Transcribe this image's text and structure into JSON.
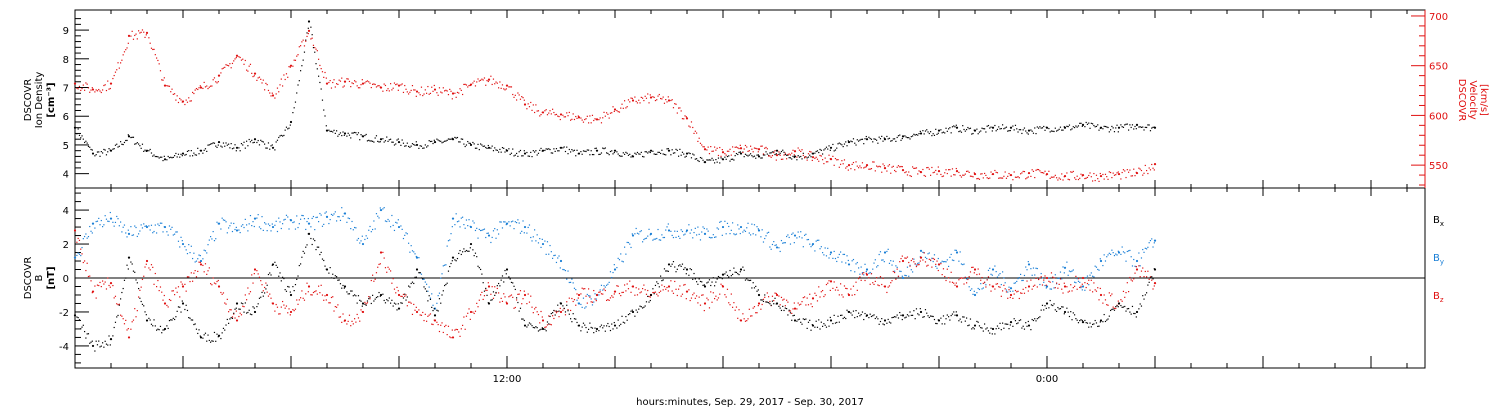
{
  "colors": {
    "black": "#000000",
    "red": "#e01010",
    "blue": "#1a7fd6"
  },
  "footer": {
    "xlabel": "hours:minutes, Sep. 29, 2017 - Sep. 30, 2017"
  },
  "chart_data": [
    {
      "id": "density-velocity",
      "type": "scatter",
      "left_axis": {
        "label_lines": [
          "DSCOVR",
          "Ion Density"
        ],
        "unit": "[cm⁻³]",
        "ylim": [
          3.5,
          9.7
        ],
        "ticks": [
          4,
          5,
          6,
          7,
          8,
          9
        ]
      },
      "right_axis": {
        "label_lines": [
          "DSCOVR",
          "Velocity"
        ],
        "unit": "[km/s]",
        "ylim": [
          527,
          706
        ],
        "ticks": [
          550,
          600,
          650,
          700
        ]
      },
      "x_hours_range": [
        0,
        37.5
      ],
      "series": [
        {
          "axis": "left",
          "color": "black",
          "x": [
            0,
            0.5,
            1,
            1.5,
            2,
            2.5,
            3,
            3.5,
            4,
            4.5,
            5,
            5.5,
            6,
            6.5,
            7,
            7.5,
            8,
            8.5,
            9,
            9.5,
            10,
            10.5,
            11,
            11.5,
            12,
            12.5,
            13,
            13.5,
            14,
            14.5,
            15,
            15.5,
            16,
            16.5,
            17,
            17.5,
            18,
            18.5,
            19,
            19.5,
            20,
            20.5,
            21,
            21.5,
            22,
            22.5,
            23,
            23.5,
            24,
            24.5,
            25,
            25.5,
            26,
            26.5,
            27,
            27.5,
            28,
            28.5,
            29,
            29.5,
            30
          ],
          "y": [
            5.6,
            4.7,
            4.8,
            5.3,
            4.8,
            4.5,
            4.7,
            4.8,
            5.1,
            4.9,
            5.2,
            4.9,
            5.8,
            9.3,
            5.5,
            5.4,
            5.3,
            5.2,
            5.1,
            5.0,
            5.1,
            5.2,
            5.0,
            4.9,
            4.8,
            4.7,
            4.8,
            4.9,
            4.7,
            4.8,
            4.8,
            4.6,
            4.8,
            4.8,
            4.7,
            4.4,
            4.5,
            4.7,
            4.6,
            4.8,
            4.6,
            4.7,
            4.9,
            5.1,
            5.2,
            5.2,
            5.3,
            5.4,
            5.5,
            5.6,
            5.5,
            5.6,
            5.6,
            5.5,
            5.6,
            5.6,
            5.7,
            5.6,
            5.6,
            5.7,
            5.6
          ]
        },
        {
          "axis": "right",
          "color": "red",
          "x": [
            0,
            0.5,
            1,
            1.5,
            2,
            2.5,
            3,
            3.5,
            4,
            4.5,
            5,
            5.5,
            6,
            6.5,
            7,
            7.5,
            8,
            8.5,
            9,
            9.5,
            10,
            10.5,
            11,
            11.5,
            12,
            12.5,
            13,
            13.5,
            14,
            14.5,
            15,
            15.5,
            16,
            16.5,
            17,
            17.5,
            18,
            18.5,
            19,
            19.5,
            20,
            20.5,
            21,
            21.5,
            22,
            22.5,
            23,
            23.5,
            24,
            24.5,
            25,
            25.5,
            26,
            26.5,
            27,
            27.5,
            28,
            28.5,
            29,
            29.5,
            30
          ],
          "y": [
            632,
            626,
            632,
            680,
            683,
            630,
            614,
            628,
            640,
            660,
            642,
            620,
            650,
            685,
            632,
            634,
            632,
            628,
            630,
            624,
            626,
            622,
            631,
            636,
            630,
            611,
            603,
            601,
            598,
            596,
            606,
            615,
            618,
            615,
            597,
            566,
            563,
            567,
            566,
            560,
            564,
            558,
            556,
            550,
            550,
            547,
            545,
            543,
            544,
            544,
            541,
            541,
            540,
            542,
            541,
            539,
            540,
            539,
            541,
            542,
            551
          ]
        }
      ]
    },
    {
      "id": "magnetic-field",
      "type": "scatter",
      "left_axis": {
        "label_lines": [
          "DSCOVR",
          "B"
        ],
        "unit": "[nT]",
        "ylim": [
          -5.3,
          5.3
        ],
        "ticks": [
          -4,
          -2,
          0,
          2,
          4
        ]
      },
      "zero_line": true,
      "x_hours_range": [
        0,
        37.5
      ],
      "xticks": [
        {
          "hour": 12,
          "label": "12:00"
        },
        {
          "hour": 27,
          "label": "0:00"
        }
      ],
      "legend": [
        {
          "label": "B",
          "sub": "x",
          "color": "black"
        },
        {
          "label": "B",
          "sub": "y",
          "color": "blue"
        },
        {
          "label": "B",
          "sub": "z",
          "color": "red"
        }
      ],
      "series": [
        {
          "name": "Bx",
          "color": "black",
          "x": [
            0,
            0.5,
            1,
            1.5,
            2,
            2.5,
            3,
            3.5,
            4,
            4.5,
            5,
            5.5,
            6,
            6.5,
            7,
            7.5,
            8,
            8.5,
            9,
            9.5,
            10,
            10.5,
            11,
            11.5,
            12,
            12.5,
            13,
            13.5,
            14,
            14.5,
            15,
            15.5,
            16,
            16.5,
            17,
            17.5,
            18,
            18.5,
            19,
            19.5,
            20,
            20.5,
            21,
            21.5,
            22,
            22.5,
            23,
            23.5,
            24,
            24.5,
            25,
            25.5,
            26,
            26.5,
            27,
            27.5,
            28,
            28.5,
            29,
            29.5,
            30
          ],
          "y": [
            -2.2,
            -4.0,
            -3.6,
            1.2,
            -2.5,
            -3.0,
            -1.5,
            -3.5,
            -3.4,
            -1.5,
            -2.0,
            0.8,
            -1.0,
            2.6,
            0.5,
            -0.5,
            -1.5,
            -1.0,
            -1.8,
            0.5,
            -2.2,
            1.2,
            2.0,
            -1.5,
            0.5,
            -2.8,
            -3.0,
            -1.5,
            -2.8,
            -3.0,
            -2.8,
            -2.0,
            -1.0,
            0.8,
            0.5,
            -0.5,
            0.2,
            0.5,
            -1.0,
            -1.5,
            -2.5,
            -2.8,
            -2.5,
            -2.0,
            -2.2,
            -2.5,
            -2.2,
            -2.0,
            -2.5,
            -2.2,
            -2.8,
            -3.0,
            -2.6,
            -2.8,
            -1.5,
            -2.0,
            -2.6,
            -2.5,
            -1.5,
            -2.0,
            0.5
          ]
        },
        {
          "name": "By",
          "color": "blue",
          "x": [
            0,
            0.5,
            1,
            1.5,
            2,
            2.5,
            3,
            3.5,
            4,
            4.5,
            5,
            5.5,
            6,
            6.5,
            7,
            7.5,
            8,
            8.5,
            9,
            9.5,
            10,
            10.5,
            11,
            11.5,
            12,
            12.5,
            13,
            13.5,
            14,
            14.5,
            15,
            15.5,
            16,
            16.5,
            17,
            17.5,
            18,
            18.5,
            19,
            19.5,
            20,
            20.5,
            21,
            21.5,
            22,
            22.5,
            23,
            23.5,
            24,
            24.5,
            25,
            25.5,
            26,
            26.5,
            27,
            27.5,
            28,
            28.5,
            29,
            29.5,
            30
          ],
          "y": [
            1.2,
            3.2,
            3.5,
            2.6,
            3.0,
            3.0,
            2.0,
            1.0,
            3.2,
            2.8,
            3.5,
            3.0,
            3.4,
            3.2,
            3.6,
            3.8,
            2.0,
            4.0,
            3.0,
            1.2,
            -1.8,
            3.5,
            3.0,
            2.5,
            3.2,
            3.0,
            2.0,
            1.0,
            -1.5,
            -1.0,
            0.5,
            2.5,
            2.6,
            2.8,
            2.8,
            2.6,
            3.0,
            3.0,
            2.8,
            1.8,
            2.5,
            2.0,
            1.5,
            0.8,
            0.5,
            1.5,
            0.0,
            1.6,
            0.8,
            1.5,
            -1.0,
            0.5,
            -0.6,
            0.8,
            -0.5,
            0.6,
            -0.5,
            1.0,
            1.5,
            1.0,
            2.2
          ]
        },
        {
          "name": "Bz",
          "color": "red",
          "x": [
            0,
            0.5,
            1,
            1.5,
            2,
            2.5,
            3,
            3.5,
            4,
            4.5,
            5,
            5.5,
            6,
            6.5,
            7,
            7.5,
            8,
            8.5,
            9,
            9.5,
            10,
            10.5,
            11,
            11.5,
            12,
            12.5,
            13,
            13.5,
            14,
            14.5,
            15,
            15.5,
            16,
            16.5,
            17,
            17.5,
            18,
            18.5,
            19,
            19.5,
            20,
            20.5,
            21,
            21.5,
            22,
            22.5,
            23,
            23.5,
            24,
            24.5,
            25,
            25.5,
            26,
            26.5,
            27,
            27.5,
            28,
            28.5,
            29,
            29.5,
            30
          ],
          "y": [
            2.8,
            -0.8,
            -0.3,
            -3.5,
            1.0,
            -1.5,
            -0.5,
            0.8,
            -0.5,
            -2.5,
            0.5,
            -1.5,
            -2.0,
            -0.5,
            -1.0,
            -2.5,
            -2.0,
            1.5,
            -1.0,
            -2.0,
            -2.5,
            -3.5,
            -2.0,
            -0.5,
            -1.5,
            -1.0,
            -2.5,
            -2.0,
            -1.0,
            -1.0,
            -0.8,
            -0.5,
            -1.0,
            -0.5,
            -0.8,
            -1.5,
            -0.5,
            -2.5,
            -1.5,
            -1.0,
            -1.8,
            -1.2,
            -0.2,
            -1.0,
            0.2,
            -0.5,
            1.0,
            1.2,
            0.8,
            -0.5,
            0.5,
            -0.5,
            -1.0,
            -0.5,
            0.0,
            -0.5,
            0.0,
            -1.0,
            -1.5,
            0.5,
            -0.3
          ]
        }
      ]
    }
  ]
}
